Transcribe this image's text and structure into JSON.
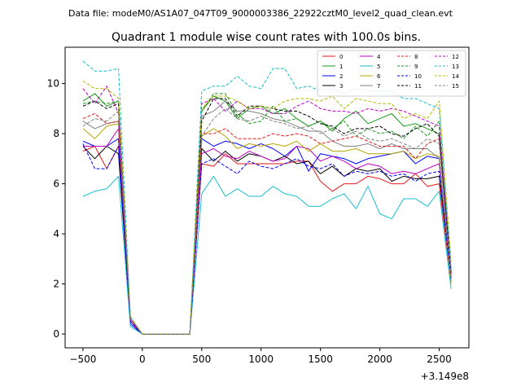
{
  "header_text": "Data file: modeM0/AS1A07_047T09_9000003386_22922cztM0_level2_quad_clean.evt",
  "chart_data": {
    "type": "line",
    "title": "Quadrant 1 module wise count rates with 100.0s bins.",
    "xlabel": "",
    "ylabel": "",
    "x_offset_label": "+3.149e8",
    "xlim": [
      -650,
      2750
    ],
    "ylim": [
      -0.55,
      11.45
    ],
    "xticks": [
      -500,
      0,
      500,
      1000,
      1500,
      2000,
      2500
    ],
    "xtick_labels": [
      "−500",
      "0",
      "500",
      "1000",
      "1500",
      "2000",
      "2500"
    ],
    "yticks": [
      0,
      2,
      4,
      6,
      8,
      10
    ],
    "ytick_labels": [
      "0",
      "2",
      "4",
      "6",
      "8",
      "10"
    ],
    "grid": false,
    "legend_position": "top-right",
    "x": [
      -500,
      -400,
      -300,
      -200,
      -100,
      0,
      100,
      200,
      300,
      400,
      500,
      600,
      700,
      800,
      900,
      1000,
      1100,
      1200,
      1300,
      1400,
      1500,
      1600,
      1700,
      1800,
      1900,
      2000,
      2100,
      2200,
      2300,
      2400,
      2500,
      2600
    ],
    "series": [
      {
        "name": "0",
        "color": "#e31a1c",
        "dash": false,
        "values": [
          7.3,
          7.5,
          6.6,
          7.5,
          0.6,
          0.0,
          0.0,
          0.0,
          0.0,
          0.0,
          6.8,
          6.7,
          7.2,
          6.8,
          6.8,
          6.8,
          6.8,
          6.8,
          6.9,
          6.9,
          6.1,
          5.7,
          6.0,
          6.0,
          6.3,
          6.2,
          6.0,
          6.0,
          6.4,
          5.9,
          6.0,
          2.1
        ]
      },
      {
        "name": "1",
        "color": "#1a9a1a",
        "dash": false,
        "values": [
          9.3,
          9.6,
          9.1,
          9.3,
          0.6,
          0.0,
          0.0,
          0.0,
          0.0,
          0.0,
          8.9,
          9.5,
          9.3,
          8.6,
          9.0,
          9.1,
          8.8,
          9.0,
          8.6,
          8.3,
          8.5,
          8.1,
          8.6,
          8.9,
          8.4,
          8.6,
          8.8,
          8.3,
          8.4,
          8.2,
          8.0,
          2.3
        ]
      },
      {
        "name": "2",
        "color": "#0000ff",
        "dash": false,
        "values": [
          7.7,
          7.5,
          7.5,
          7.8,
          0.4,
          0.0,
          0.0,
          0.0,
          0.0,
          0.0,
          7.8,
          7.5,
          7.7,
          7.6,
          7.4,
          7.6,
          7.4,
          7.1,
          7.5,
          6.5,
          7.2,
          7.1,
          7.0,
          6.8,
          7.0,
          7.1,
          7.2,
          7.3,
          6.8,
          7.1,
          7.0,
          2.2
        ]
      },
      {
        "name": "3",
        "color": "#000000",
        "dash": false,
        "values": [
          7.5,
          7.0,
          7.5,
          7.2,
          0.5,
          0.0,
          0.0,
          0.0,
          0.0,
          0.0,
          7.4,
          6.9,
          7.3,
          6.9,
          7.2,
          7.1,
          6.9,
          7.1,
          6.8,
          6.9,
          6.4,
          6.7,
          6.3,
          6.6,
          6.5,
          6.6,
          6.1,
          6.3,
          6.2,
          6.2,
          6.3,
          2.4
        ]
      },
      {
        "name": "4",
        "color": "#c000c0",
        "dash": false,
        "values": [
          7.5,
          7.5,
          7.5,
          8.2,
          0.5,
          0.0,
          0.0,
          0.0,
          0.0,
          0.0,
          7.2,
          7.4,
          7.1,
          7.0,
          7.3,
          7.1,
          6.9,
          7.0,
          7.5,
          7.4,
          6.9,
          7.1,
          6.9,
          6.6,
          6.8,
          6.7,
          6.4,
          6.5,
          6.4,
          6.6,
          6.8,
          2.4
        ]
      },
      {
        "name": "5",
        "color": "#17becf",
        "dash": false,
        "values": [
          5.5,
          5.7,
          5.8,
          6.3,
          0.3,
          0.0,
          0.0,
          0.0,
          0.0,
          0.0,
          5.6,
          6.3,
          5.5,
          5.8,
          5.5,
          5.5,
          5.9,
          5.6,
          5.5,
          5.1,
          5.1,
          5.4,
          5.6,
          5.0,
          5.9,
          4.8,
          4.6,
          5.4,
          5.4,
          5.1,
          5.7,
          1.8
        ]
      },
      {
        "name": "6",
        "color": "#b8a500",
        "dash": false,
        "values": [
          8.2,
          7.8,
          8.3,
          8.4,
          0.6,
          0.0,
          0.0,
          0.0,
          0.0,
          0.0,
          7.9,
          8.2,
          7.9,
          7.4,
          7.6,
          7.5,
          7.6,
          7.5,
          7.7,
          7.3,
          7.6,
          7.3,
          7.3,
          7.4,
          7.2,
          7.2,
          7.2,
          7.3,
          7.0,
          7.2,
          7.1,
          2.0
        ]
      },
      {
        "name": "7",
        "color": "#808080",
        "dash": false,
        "values": [
          8.5,
          8.2,
          8.4,
          8.5,
          0.6,
          0.0,
          0.0,
          0.0,
          0.0,
          0.0,
          8.7,
          8.9,
          9.3,
          8.9,
          8.9,
          8.8,
          8.6,
          8.5,
          8.3,
          8.1,
          8.1,
          7.7,
          7.5,
          7.5,
          7.6,
          7.4,
          7.6,
          7.4,
          7.4,
          7.4,
          7.0,
          2.2
        ]
      },
      {
        "name": "8",
        "color": "#e31a1c",
        "dash": true,
        "values": [
          8.6,
          8.8,
          8.4,
          8.5,
          0.6,
          0.0,
          0.0,
          0.0,
          0.0,
          0.0,
          8.0,
          8.0,
          8.2,
          7.8,
          7.8,
          7.8,
          8.0,
          7.9,
          8.0,
          7.9,
          7.6,
          7.7,
          7.8,
          7.9,
          7.7,
          7.5,
          7.5,
          7.5,
          7.0,
          7.6,
          7.8,
          2.3
        ]
      },
      {
        "name": "9",
        "color": "#1a9a1a",
        "dash": true,
        "values": [
          9.2,
          9.3,
          9.2,
          9.3,
          0.6,
          0.0,
          0.0,
          0.0,
          0.0,
          0.0,
          8.9,
          9.6,
          9.6,
          8.8,
          8.4,
          8.5,
          9.1,
          8.5,
          8.6,
          8.3,
          8.5,
          8.2,
          8.5,
          7.9,
          8.2,
          8.0,
          8.1,
          7.8,
          8.3,
          7.9,
          8.5,
          2.5
        ]
      },
      {
        "name": "10",
        "color": "#0000ff",
        "dash": true,
        "values": [
          7.6,
          6.6,
          6.6,
          7.5,
          0.5,
          0.0,
          0.0,
          0.0,
          0.0,
          0.0,
          6.8,
          7.0,
          6.7,
          6.4,
          6.9,
          6.7,
          6.6,
          6.8,
          7.0,
          6.7,
          6.6,
          6.8,
          6.3,
          6.5,
          6.4,
          6.5,
          6.3,
          6.4,
          6.1,
          6.4,
          6.5,
          2.2
        ]
      },
      {
        "name": "11",
        "color": "#000000",
        "dash": true,
        "values": [
          9.1,
          9.3,
          9.0,
          9.2,
          0.6,
          0.0,
          0.0,
          0.0,
          0.0,
          0.0,
          8.5,
          9.4,
          9.4,
          8.7,
          9.1,
          9.1,
          9.0,
          8.9,
          8.9,
          8.7,
          8.4,
          8.3,
          8.0,
          8.2,
          8.2,
          8.3,
          8.0,
          7.9,
          8.2,
          8.4,
          7.9,
          2.5
        ]
      },
      {
        "name": "12",
        "color": "#c000c0",
        "dash": true,
        "values": [
          9.8,
          9.2,
          9.9,
          8.8,
          0.6,
          0.0,
          0.0,
          0.0,
          0.0,
          0.0,
          9.2,
          9.4,
          8.9,
          9.3,
          9.0,
          9.0,
          8.8,
          8.8,
          9.1,
          9.3,
          9.0,
          8.9,
          8.9,
          8.8,
          9.0,
          8.9,
          9.0,
          8.9,
          8.7,
          8.5,
          8.3,
          2.6
        ]
      },
      {
        "name": "13",
        "color": "#17becf",
        "dash": true,
        "values": [
          10.9,
          10.5,
          10.5,
          10.6,
          0.7,
          0.0,
          0.0,
          0.0,
          0.0,
          0.0,
          9.7,
          9.9,
          9.9,
          10.3,
          9.9,
          9.8,
          10.6,
          10.6,
          9.8,
          9.9,
          9.7,
          9.8,
          9.6,
          9.8,
          9.7,
          9.7,
          9.7,
          9.4,
          9.4,
          9.2,
          9.0,
          2.6
        ]
      },
      {
        "name": "14",
        "color": "#b8b800",
        "dash": true,
        "values": [
          10.1,
          9.8,
          9.8,
          9.4,
          0.7,
          0.0,
          0.0,
          0.0,
          0.0,
          0.0,
          9.0,
          9.5,
          9.5,
          9.3,
          9.0,
          9.1,
          9.0,
          9.3,
          9.4,
          9.4,
          9.3,
          9.5,
          9.0,
          9.4,
          9.3,
          9.2,
          9.2,
          8.6,
          8.8,
          8.6,
          9.3,
          2.9
        ]
      },
      {
        "name": "15",
        "color": "#808080",
        "dash": true,
        "values": [
          8.3,
          8.6,
          8.5,
          8.9,
          0.6,
          0.0,
          0.0,
          0.0,
          0.0,
          0.0,
          7.9,
          8.6,
          9.0,
          8.6,
          8.5,
          8.7,
          8.5,
          8.4,
          8.2,
          8.3,
          8.0,
          8.2,
          7.9,
          8.1,
          7.8,
          7.7,
          7.8,
          7.6,
          7.4,
          7.8,
          7.6,
          2.2
        ]
      }
    ]
  }
}
